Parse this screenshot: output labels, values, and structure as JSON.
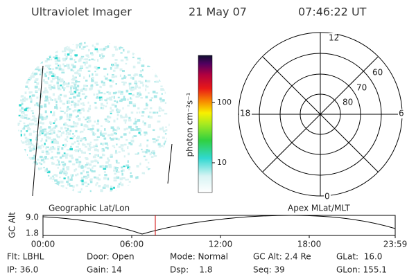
{
  "header": {
    "instrument": "Ultraviolet Imager",
    "date": "21 May 07",
    "time": "07:46:22 UT"
  },
  "colorbar": {
    "label": "photon cm⁻²s⁻¹",
    "ticks": [
      "100",
      "10"
    ]
  },
  "polar": {
    "mlt_labels": [
      "12",
      "18",
      "6",
      "0"
    ],
    "lat_labels": [
      "60",
      "70",
      "80"
    ]
  },
  "orbit": {
    "y_label": "GC Alt",
    "yticks": [
      "9.0",
      "1.8"
    ],
    "left_title": "Geographic Lat/Lon",
    "right_title": "Apex MLat/MLT",
    "xticks": [
      "00:00",
      "06:00",
      "12:00",
      "18:00",
      "23:59"
    ]
  },
  "info": {
    "rows": [
      [
        "Flt: LBHL",
        "Door: Open",
        "Mode: Normal",
        "GC Alt: 2.4 Re",
        "GLat:  16.0"
      ],
      [
        "IP: 36.0",
        "Gain: 14",
        "Dsp:    1.8",
        "Seq: 39",
        "GLon: 155.1"
      ]
    ]
  }
}
